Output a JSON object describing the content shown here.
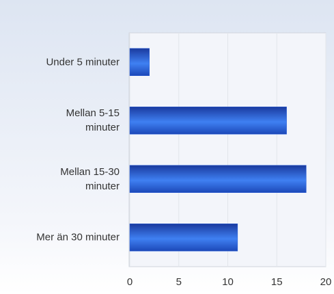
{
  "chart_data": {
    "type": "bar",
    "orientation": "horizontal",
    "categories": [
      "Under 5 minuter",
      "Mellan 5-15\nminuter",
      "Mellan 15-30\nminuter",
      "Mer än 30 minuter"
    ],
    "values": [
      2,
      16,
      18,
      11
    ],
    "color": "#2a5fd8",
    "xlim": [
      0,
      20
    ],
    "xticks": [
      0,
      5,
      10,
      15,
      20
    ],
    "grid": true
  }
}
